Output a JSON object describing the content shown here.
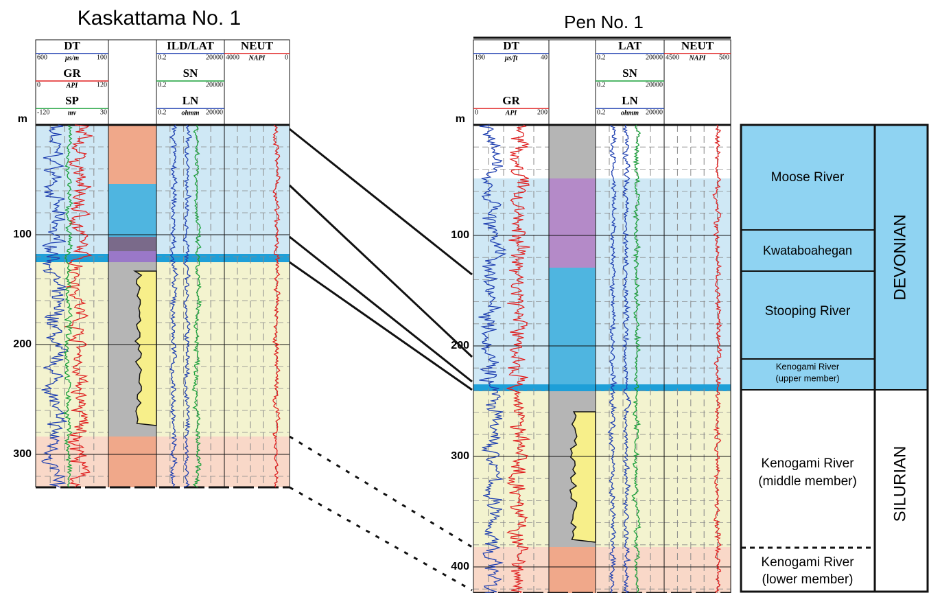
{
  "wells": [
    {
      "name": "Kaskattama No. 1",
      "depth_unit": "m",
      "depth_labels": [
        "100",
        "200",
        "300"
      ],
      "tracks": [
        {
          "curves": [
            {
              "name": "DT",
              "left": "600",
              "unit": "µs/m",
              "right": "100"
            },
            {
              "name": "GR",
              "left": "0",
              "unit": "API",
              "right": "120"
            },
            {
              "name": "SP",
              "left": "-120",
              "unit": "mv",
              "right": "30"
            }
          ]
        },
        {
          "curves": [
            {
              "name": "ILD/LAT",
              "left": "0.2",
              "right": "20000"
            },
            {
              "name": "SN",
              "left": "0.2",
              "right": "20000"
            },
            {
              "name": "LN",
              "left": "0.2",
              "unit": "ohmm",
              "right": "20000"
            }
          ]
        },
        {
          "curves": [
            {
              "name": "NEUT",
              "left": "4000",
              "unit": "NAPI",
              "right": "0"
            }
          ]
        }
      ]
    },
    {
      "name": "Pen No. 1",
      "depth_unit": "m",
      "depth_labels": [
        "100",
        "200",
        "300",
        "400"
      ],
      "tracks": [
        {
          "curves": [
            {
              "name": "DT",
              "left": "190",
              "unit": "µs/ft",
              "right": "40"
            },
            {
              "name": "GR",
              "left": "0",
              "unit": "API",
              "right": "200"
            }
          ]
        },
        {
          "curves": [
            {
              "name": "LAT",
              "left": "0.2",
              "right": "20000"
            },
            {
              "name": "SN",
              "left": "0.2",
              "right": "20000"
            },
            {
              "name": "LN",
              "left": "0.2",
              "unit": "ohmm",
              "right": "20000"
            }
          ]
        },
        {
          "curves": [
            {
              "name": "NEUT",
              "left": "4500",
              "unit": "NAPI",
              "right": "500"
            }
          ]
        }
      ]
    }
  ],
  "column": {
    "formations": [
      {
        "lines": [
          "Moose River"
        ]
      },
      {
        "lines": [
          "Kwataboahegan"
        ]
      },
      {
        "lines": [
          "Stooping River"
        ]
      },
      {
        "lines": [
          "Kenogami River",
          "(upper member)"
        ]
      },
      {
        "lines": [
          "Kenogami River",
          "(middle member)"
        ]
      },
      {
        "lines": [
          "Kenogami River",
          "(lower member)"
        ]
      }
    ],
    "systems": [
      "DEVONIAN",
      "SILURIAN"
    ]
  }
}
